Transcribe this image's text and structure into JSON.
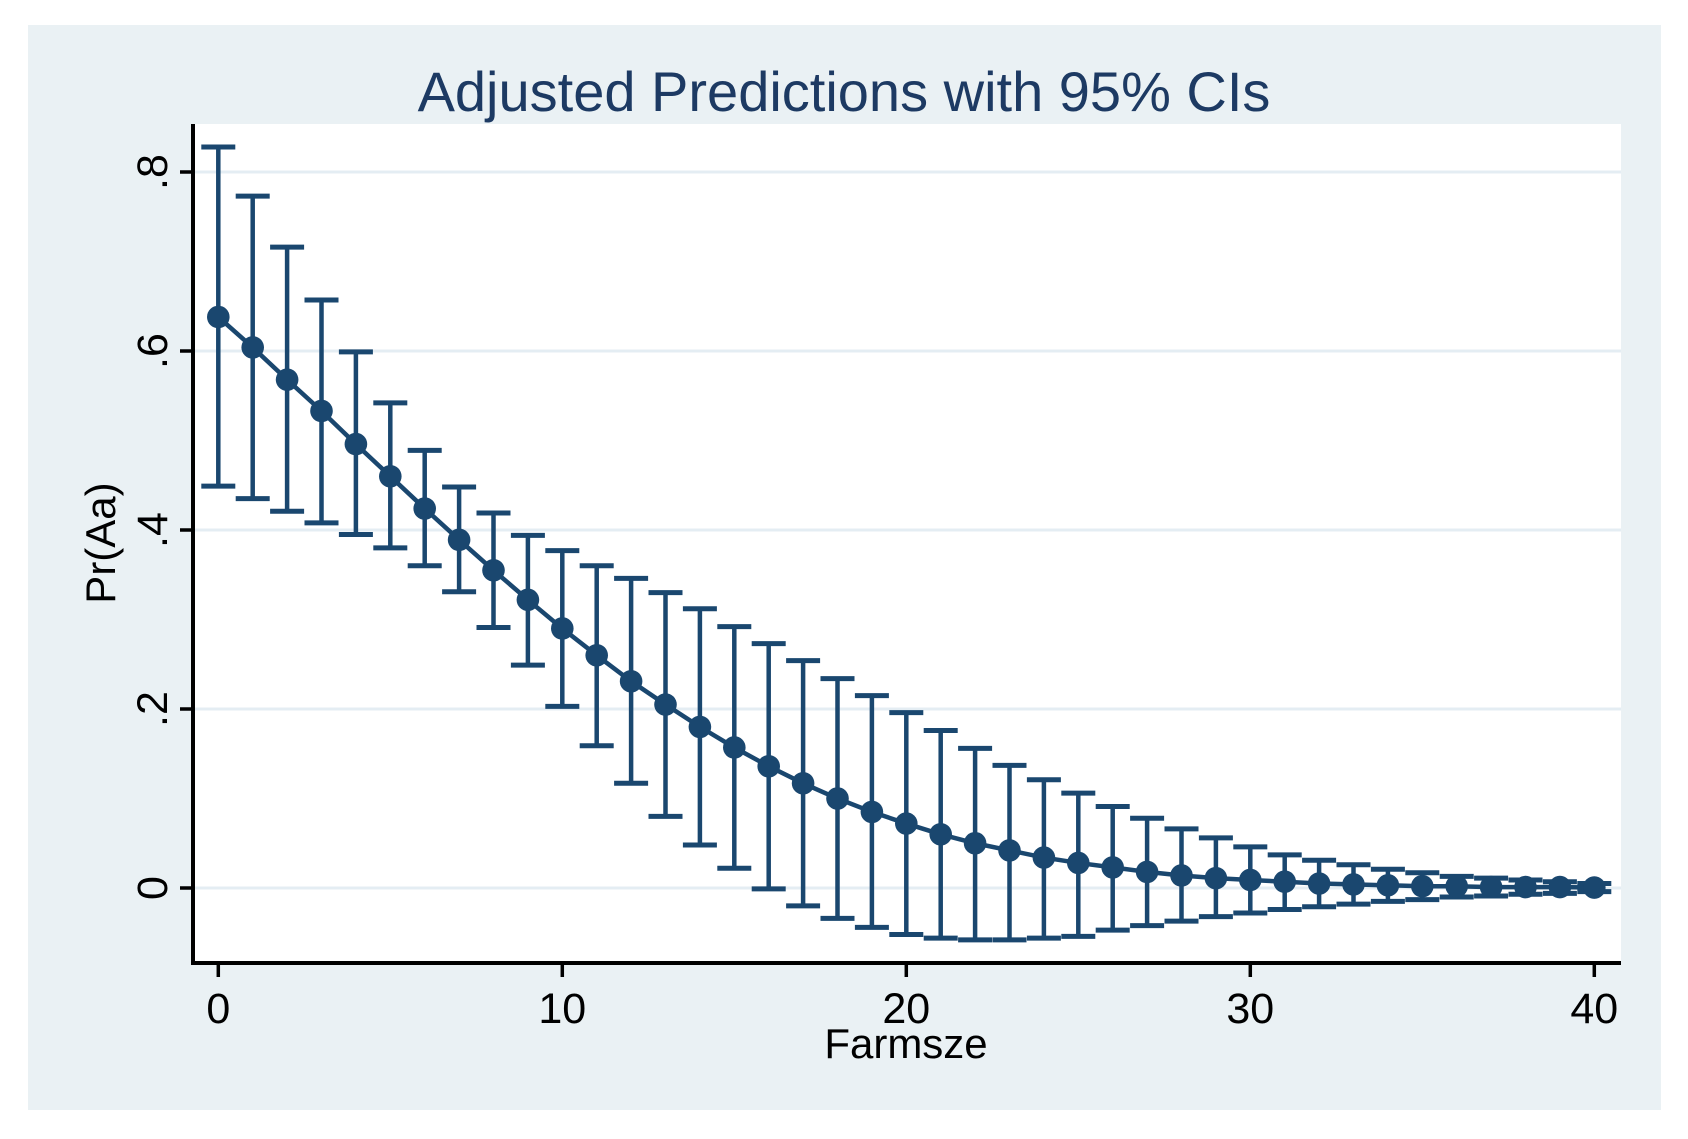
{
  "chart_data": {
    "type": "line",
    "title": "Adjusted Predictions with 95% CIs",
    "xlabel": "Farmsze",
    "ylabel": "Pr(Aa)",
    "x": [
      0,
      1,
      2,
      3,
      4,
      5,
      6,
      7,
      8,
      9,
      10,
      11,
      12,
      13,
      14,
      15,
      16,
      17,
      18,
      19,
      20,
      21,
      22,
      23,
      24,
      25,
      26,
      27,
      28,
      29,
      30,
      31,
      32,
      33,
      34,
      35,
      36,
      37,
      38,
      39,
      40
    ],
    "series": [
      {
        "name": "Adjusted prediction Pr(Aa)",
        "values": [
          0.638,
          0.604,
          0.568,
          0.533,
          0.496,
          0.46,
          0.424,
          0.389,
          0.355,
          0.322,
          0.29,
          0.26,
          0.231,
          0.205,
          0.18,
          0.157,
          0.136,
          0.117,
          0.1,
          0.085,
          0.072,
          0.06,
          0.05,
          0.042,
          0.034,
          0.028,
          0.023,
          0.018,
          0.014,
          0.011,
          0.009,
          0.007,
          0.005,
          0.004,
          0.003,
          0.002,
          0.002,
          0.001,
          0.001,
          0.001,
          0.0005
        ]
      },
      {
        "name": "95% CI upper",
        "values": [
          0.828,
          0.773,
          0.716,
          0.657,
          0.599,
          0.542,
          0.489,
          0.448,
          0.419,
          0.394,
          0.377,
          0.36,
          0.346,
          0.33,
          0.312,
          0.292,
          0.273,
          0.254,
          0.234,
          0.215,
          0.196,
          0.176,
          0.156,
          0.137,
          0.121,
          0.106,
          0.091,
          0.078,
          0.066,
          0.056,
          0.046,
          0.037,
          0.031,
          0.026,
          0.021,
          0.017,
          0.013,
          0.011,
          0.009,
          0.007,
          0.005
        ]
      },
      {
        "name": "95% CI lower",
        "values": [
          0.449,
          0.435,
          0.421,
          0.408,
          0.395,
          0.38,
          0.36,
          0.331,
          0.291,
          0.249,
          0.203,
          0.159,
          0.117,
          0.08,
          0.048,
          0.022,
          -0.001,
          -0.02,
          -0.034,
          -0.044,
          -0.052,
          -0.056,
          -0.058,
          -0.058,
          -0.056,
          -0.054,
          -0.047,
          -0.042,
          -0.037,
          -0.032,
          -0.028,
          -0.024,
          -0.021,
          -0.018,
          -0.015,
          -0.013,
          -0.01,
          -0.009,
          -0.007,
          -0.006,
          -0.004
        ]
      }
    ],
    "xticks": {
      "values": [
        0,
        10,
        20,
        30,
        40
      ],
      "labels": [
        "0",
        "10",
        "20",
        "30",
        "40"
      ]
    },
    "yticks": {
      "values": [
        0,
        0.2,
        0.4,
        0.6,
        0.8
      ],
      "labels": [
        "0",
        ".2",
        ".4",
        ".6",
        ".8"
      ]
    },
    "xlim": [
      -0.74,
      40.8
    ],
    "ylim": [
      -0.084,
      0.854
    ],
    "grid": "horizontal",
    "legend": "none",
    "colors": {
      "marker_line": "#1a476f",
      "title_text": "#1d3a63",
      "figure_background": "#eaf1f4",
      "plot_background": "#ffffff",
      "gridline": "#e4edf3",
      "axis": "#000000"
    }
  }
}
